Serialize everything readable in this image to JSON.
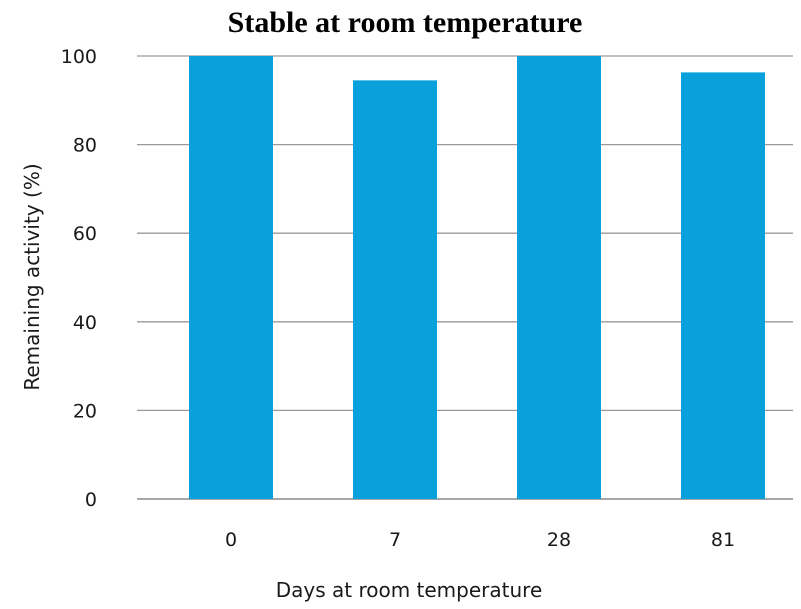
{
  "chart_data": {
    "type": "bar",
    "title": "Stable at room temperature",
    "xlabel": "Days at room temperature",
    "ylabel": "Remaining activity (%)",
    "categories": [
      "0",
      "7",
      "28",
      "81"
    ],
    "values": [
      100,
      94.5,
      100,
      96.3
    ],
    "ylim": [
      0,
      100
    ],
    "yticks": [
      "0",
      "20",
      "40",
      "60",
      "80",
      "100"
    ],
    "grid": true,
    "bar_color": "#0aa0dc",
    "grid_color": "#9a9a9a"
  }
}
